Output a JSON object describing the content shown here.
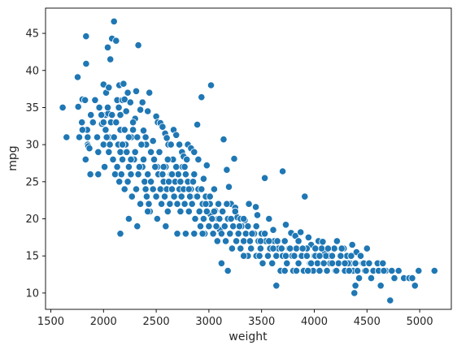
{
  "chart_data": {
    "type": "scatter",
    "title": "",
    "xlabel": "weight",
    "ylabel": "mpg",
    "xlim": [
      1450,
      5300
    ],
    "ylim": [
      7.8,
      48.4
    ],
    "xticks": [
      1500,
      2000,
      2500,
      3000,
      3500,
      4000,
      4500,
      5000
    ],
    "yticks": [
      10,
      15,
      20,
      25,
      30,
      35,
      40,
      45
    ],
    "grid": false,
    "legend": "none",
    "marker_color": "#1f77b4",
    "marker_edge_color": "#ffffff",
    "points": [
      [
        1613,
        35
      ],
      [
        1649,
        31
      ],
      [
        1755,
        39.1
      ],
      [
        1760,
        35.1
      ],
      [
        1773,
        31
      ],
      [
        1795,
        33
      ],
      [
        1800,
        36.1
      ],
      [
        1825,
        36
      ],
      [
        1834,
        44.6
      ],
      [
        1835,
        40.9
      ],
      [
        1845,
        32
      ],
      [
        1850,
        30
      ],
      [
        1855,
        29.8
      ],
      [
        1867,
        29.5
      ],
      [
        1875,
        26
      ],
      [
        1950,
        26
      ],
      [
        1985,
        32.8
      ],
      [
        2000,
        38.1
      ],
      [
        2020,
        34
      ],
      [
        2025,
        37
      ],
      [
        2040,
        43.1
      ],
      [
        2045,
        34.2
      ],
      [
        2050,
        37.7
      ],
      [
        2051,
        31
      ],
      [
        2065,
        41.5
      ],
      [
        2080,
        44.3
      ],
      [
        2100,
        46.6
      ],
      [
        2120,
        44
      ],
      [
        2130,
        36
      ],
      [
        2145,
        35
      ],
      [
        2150,
        38
      ],
      [
        2160,
        32
      ],
      [
        2180,
        36
      ],
      [
        2190,
        38.2
      ],
      [
        2200,
        36.1
      ],
      [
        2215,
        34.5
      ],
      [
        2230,
        37
      ],
      [
        2245,
        31
      ],
      [
        2255,
        35.7
      ],
      [
        2265,
        31
      ],
      [
        2280,
        32
      ],
      [
        2300,
        33.5
      ],
      [
        2310,
        37.2
      ],
      [
        2330,
        43.4
      ],
      [
        2350,
        34.7
      ],
      [
        2370,
        35.7
      ],
      [
        2380,
        31.9
      ],
      [
        2405,
        30
      ],
      [
        2420,
        34.5
      ],
      [
        2435,
        37
      ],
      [
        2470,
        30.5
      ],
      [
        2500,
        33.8
      ],
      [
        2515,
        33
      ],
      [
        2540,
        32.9
      ],
      [
        2560,
        32.4
      ],
      [
        2585,
        31.5
      ],
      [
        2600,
        30.9
      ],
      [
        2615,
        30
      ],
      [
        2640,
        30
      ],
      [
        2665,
        32
      ],
      [
        2690,
        31.3
      ],
      [
        2720,
        30
      ],
      [
        2745,
        29
      ],
      [
        2760,
        28.4
      ],
      [
        2790,
        28
      ],
      [
        2800,
        30
      ],
      [
        2830,
        29.5
      ],
      [
        2860,
        29
      ],
      [
        2890,
        32.7
      ],
      [
        2900,
        28
      ],
      [
        2930,
        36.4
      ],
      [
        2950,
        25.4
      ],
      [
        2980,
        27.2
      ],
      [
        3020,
        38
      ],
      [
        3015,
        20.6
      ],
      [
        3060,
        21.1
      ],
      [
        3085,
        20
      ],
      [
        3105,
        18.5
      ],
      [
        3140,
        30.7
      ],
      [
        3170,
        26.6
      ],
      [
        3190,
        24.3
      ],
      [
        3210,
        22
      ],
      [
        3240,
        28.1
      ],
      [
        3250,
        21.5
      ],
      [
        3270,
        20.2
      ],
      [
        3285,
        19
      ],
      [
        3300,
        20
      ],
      [
        3340,
        19.8
      ],
      [
        3380,
        22
      ],
      [
        3420,
        18.1
      ],
      [
        3445,
        21.6
      ],
      [
        3460,
        20.5
      ],
      [
        3500,
        18
      ],
      [
        3530,
        25.5
      ],
      [
        3570,
        20
      ],
      [
        3610,
        18.5
      ],
      [
        3650,
        17
      ],
      [
        3700,
        26.4
      ],
      [
        3730,
        19.2
      ],
      [
        3780,
        18.1
      ],
      [
        3820,
        17.7
      ],
      [
        3870,
        18.2
      ],
      [
        3910,
        23
      ],
      [
        3945,
        17.5
      ],
      [
        3970,
        16.5
      ],
      [
        4000,
        15
      ],
      [
        4040,
        17
      ],
      [
        4080,
        16.9
      ],
      [
        4100,
        15.5
      ],
      [
        4140,
        15
      ],
      [
        4190,
        16
      ],
      [
        4215,
        17
      ],
      [
        4250,
        15
      ],
      [
        4280,
        16
      ],
      [
        4310,
        15
      ],
      [
        4340,
        14
      ],
      [
        4360,
        16.5
      ],
      [
        4380,
        13
      ],
      [
        4400,
        15.5
      ],
      [
        4425,
        12
      ],
      [
        4460,
        14
      ],
      [
        4480,
        13
      ],
      [
        4500,
        16
      ],
      [
        4540,
        12
      ],
      [
        4600,
        14
      ],
      [
        4630,
        11
      ],
      [
        4650,
        14
      ],
      [
        4680,
        13
      ],
      [
        4720,
        9
      ],
      [
        4735,
        13
      ],
      [
        4760,
        12
      ],
      [
        4800,
        13
      ],
      [
        4850,
        12
      ],
      [
        4900,
        12
      ],
      [
        4930,
        12
      ],
      [
        4955,
        11
      ],
      [
        4990,
        13
      ],
      [
        5140,
        13
      ],
      [
        1800,
        32
      ],
      [
        1850,
        31
      ],
      [
        1900,
        33
      ],
      [
        1950,
        29
      ],
      [
        2000,
        30
      ],
      [
        2010,
        27
      ],
      [
        2030,
        31
      ],
      [
        2050,
        29
      ],
      [
        2070,
        33
      ],
      [
        2090,
        28
      ],
      [
        2110,
        26
      ],
      [
        2130,
        27
      ],
      [
        2150,
        25
      ],
      [
        2160,
        29
      ],
      [
        2170,
        26
      ],
      [
        2180,
        28
      ],
      [
        2200,
        24
      ],
      [
        2210,
        30
      ],
      [
        2230,
        25
      ],
      [
        2240,
        27
      ],
      [
        2260,
        26
      ],
      [
        2270,
        23
      ],
      [
        2290,
        28
      ],
      [
        2310,
        24
      ],
      [
        2330,
        26
      ],
      [
        2350,
        22
      ],
      [
        2370,
        27
      ],
      [
        2390,
        25
      ],
      [
        2400,
        24
      ],
      [
        2410,
        23
      ],
      [
        2420,
        26
      ],
      [
        2430,
        22
      ],
      [
        2440,
        21
      ],
      [
        2450,
        25
      ],
      [
        2470,
        24
      ],
      [
        2480,
        28
      ],
      [
        2500,
        23
      ],
      [
        2510,
        27
      ],
      [
        2520,
        26
      ],
      [
        2540,
        24
      ],
      [
        2550,
        22
      ],
      [
        2560,
        26
      ],
      [
        2570,
        25
      ],
      [
        2580,
        23
      ],
      [
        2590,
        27
      ],
      [
        2600,
        24
      ],
      [
        2610,
        21
      ],
      [
        2620,
        25
      ],
      [
        2630,
        22
      ],
      [
        2640,
        26
      ],
      [
        2650,
        24
      ],
      [
        2660,
        28
      ],
      [
        2670,
        23
      ],
      [
        2680,
        25
      ],
      [
        2700,
        22
      ],
      [
        2710,
        26
      ],
      [
        2720,
        24
      ],
      [
        2730,
        21
      ],
      [
        2740,
        23
      ],
      [
        2750,
        27
      ],
      [
        2760,
        24
      ],
      [
        2770,
        22
      ],
      [
        2780,
        26
      ],
      [
        2800,
        25
      ],
      [
        2810,
        21
      ],
      [
        2820,
        23
      ],
      [
        2830,
        24
      ],
      [
        2840,
        22
      ],
      [
        2860,
        26
      ],
      [
        2870,
        20
      ],
      [
        2880,
        23
      ],
      [
        2900,
        24
      ],
      [
        2910,
        21
      ],
      [
        2920,
        19
      ],
      [
        2940,
        22
      ],
      [
        2950,
        20
      ],
      [
        2960,
        18
      ],
      [
        2970,
        23
      ],
      [
        2980,
        21
      ],
      [
        3000,
        19
      ],
      [
        3010,
        22
      ],
      [
        3030,
        20
      ],
      [
        3040,
        18
      ],
      [
        3050,
        21
      ],
      [
        3070,
        19
      ],
      [
        3080,
        17
      ],
      [
        3100,
        20
      ],
      [
        3120,
        18
      ],
      [
        3130,
        21
      ],
      [
        3150,
        19
      ],
      [
        3160,
        17
      ],
      [
        3180,
        20
      ],
      [
        3200,
        18
      ],
      [
        3220,
        16
      ],
      [
        3230,
        19
      ],
      [
        3260,
        17
      ],
      [
        3280,
        18
      ],
      [
        3300,
        16
      ],
      [
        3310,
        19
      ],
      [
        3330,
        17
      ],
      [
        3350,
        18
      ],
      [
        3370,
        15
      ],
      [
        3390,
        17
      ],
      [
        3400,
        16
      ],
      [
        3430,
        18
      ],
      [
        3450,
        15
      ],
      [
        3470,
        17
      ],
      [
        3490,
        16
      ],
      [
        3510,
        14
      ],
      [
        3540,
        17
      ],
      [
        3560,
        15
      ],
      [
        3580,
        16
      ],
      [
        3600,
        14
      ],
      [
        3620,
        17
      ],
      [
        3640,
        15
      ],
      [
        3660,
        16
      ],
      [
        3680,
        13
      ],
      [
        3700,
        15
      ],
      [
        3720,
        17
      ],
      [
        3740,
        14
      ],
      [
        3760,
        16
      ],
      [
        3790,
        15
      ],
      [
        3800,
        13
      ],
      [
        3830,
        16
      ],
      [
        3850,
        14
      ],
      [
        3880,
        15
      ],
      [
        3900,
        13
      ],
      [
        3930,
        16
      ],
      [
        3960,
        14
      ],
      [
        3990,
        13
      ],
      [
        4010,
        15
      ],
      [
        4030,
        14
      ],
      [
        4050,
        13
      ],
      [
        4070,
        16
      ],
      [
        4090,
        14
      ],
      [
        4110,
        15
      ],
      [
        4120,
        13
      ],
      [
        4150,
        14
      ],
      [
        4170,
        15
      ],
      [
        4200,
        13
      ],
      [
        4230,
        14
      ],
      [
        4260,
        16
      ],
      [
        4290,
        13
      ],
      [
        4320,
        14
      ],
      [
        4350,
        15
      ],
      [
        4370,
        13
      ],
      [
        4390,
        14
      ],
      [
        4410,
        13
      ],
      [
        4440,
        15
      ],
      [
        4470,
        14
      ],
      [
        4490,
        13
      ],
      [
        4520,
        14
      ],
      [
        4560,
        13
      ],
      [
        4610,
        13
      ],
      [
        4660,
        13
      ],
      [
        1770,
        31
      ],
      [
        1830,
        28
      ],
      [
        1880,
        34
      ],
      [
        1920,
        36
      ],
      [
        1940,
        31
      ],
      [
        1960,
        35
      ],
      [
        1980,
        34
      ],
      [
        2000,
        33
      ],
      [
        2020,
        32
      ],
      [
        2040,
        35
      ],
      [
        2060,
        30
      ],
      [
        2080,
        34
      ],
      [
        2100,
        31
      ],
      [
        2120,
        33
      ],
      [
        2140,
        30
      ],
      [
        2160,
        34
      ],
      [
        2180,
        30
      ],
      [
        2200,
        32
      ],
      [
        2220,
        29
      ],
      [
        2240,
        31
      ],
      [
        2260,
        28
      ],
      [
        2280,
        33
      ],
      [
        2300,
        29
      ],
      [
        2320,
        31
      ],
      [
        2340,
        27
      ],
      [
        2360,
        30
      ],
      [
        2380,
        28
      ],
      [
        2400,
        31
      ],
      [
        2450,
        29
      ],
      [
        2490,
        27
      ],
      [
        2530,
        29
      ],
      [
        2570,
        27
      ],
      [
        2610,
        28
      ],
      [
        2650,
        26
      ],
      [
        2690,
        27
      ],
      [
        2730,
        25
      ],
      [
        2770,
        27
      ],
      [
        2810,
        24
      ],
      [
        2850,
        25
      ],
      [
        2890,
        23
      ],
      [
        2930,
        24
      ],
      [
        2970,
        22
      ],
      [
        3010,
        23
      ],
      [
        3050,
        24
      ],
      [
        3090,
        22
      ],
      [
        3130,
        21
      ],
      [
        3170,
        22
      ],
      [
        3210,
        20
      ],
      [
        3250,
        21
      ],
      [
        3290,
        19
      ],
      [
        3330,
        20
      ],
      [
        3370,
        19
      ],
      [
        3410,
        18
      ],
      [
        3450,
        19
      ],
      [
        3490,
        17
      ],
      [
        3530,
        18
      ],
      [
        3570,
        17
      ],
      [
        3610,
        16
      ],
      [
        3650,
        17
      ],
      [
        3690,
        16
      ],
      [
        3730,
        15
      ],
      [
        3770,
        16
      ],
      [
        3810,
        15
      ],
      [
        3850,
        17
      ],
      [
        3890,
        16
      ],
      [
        3930,
        15
      ],
      [
        3970,
        14
      ],
      [
        4010,
        16
      ],
      [
        4050,
        15
      ],
      [
        4090,
        14
      ],
      [
        4130,
        16
      ],
      [
        4170,
        14
      ],
      [
        4210,
        13
      ],
      [
        4250,
        15
      ],
      [
        4290,
        14
      ],
      [
        4330,
        13
      ],
      [
        4380,
        10
      ],
      [
        4390,
        11
      ],
      [
        2160,
        18
      ],
      [
        2240,
        20
      ],
      [
        2320,
        19
      ],
      [
        2420,
        21
      ],
      [
        2510,
        20
      ],
      [
        2590,
        19
      ],
      [
        2700,
        18
      ],
      [
        2780,
        18
      ],
      [
        2860,
        18
      ],
      [
        2940,
        18
      ],
      [
        3120,
        14
      ],
      [
        3180,
        13
      ],
      [
        3330,
        15
      ],
      [
        3480,
        15
      ],
      [
        3640,
        11
      ],
      [
        3720,
        13
      ],
      [
        3830,
        13
      ],
      [
        3940,
        13
      ]
    ]
  }
}
